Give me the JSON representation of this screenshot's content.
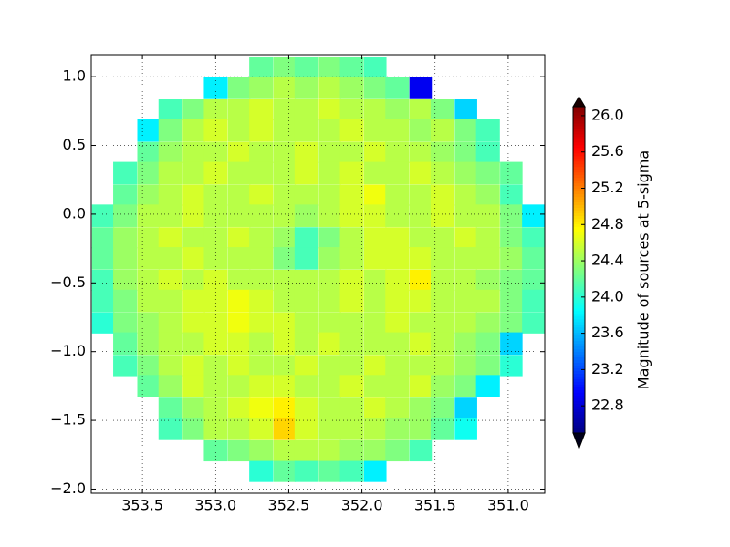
{
  "chart_data": {
    "type": "heatmap",
    "colorbar_label": "Magnitude of sources at 5-sigma",
    "colormap": "jet",
    "clim": [
      22.5,
      26.1
    ],
    "cticks": [
      22.8,
      23.2,
      23.6,
      {
        "value": 24,
        "label": "24.0"
      },
      24.4,
      24.8,
      25.2,
      25.6,
      {
        "value": 26,
        "label": "26.0"
      }
    ],
    "xlim": [
      353.85,
      350.75
    ],
    "ylim": [
      -2.03,
      1.16
    ],
    "xticks": [
      353.5,
      {
        "value": 353,
        "label": "353.0"
      },
      352.5,
      {
        "value": 352,
        "label": "352.0"
      },
      351.5,
      {
        "value": 351,
        "label": "351.0"
      }
    ],
    "yticks": [
      {
        "value": 1,
        "label": "1.0"
      },
      {
        "value": 0.5,
        "label": "0.5"
      },
      {
        "value": 0,
        "label": "0.0"
      },
      {
        "value": -0.5,
        "label": "−0.5"
      },
      {
        "value": -1,
        "label": "−1.0"
      },
      {
        "value": -1.5,
        "label": "−1.5"
      },
      {
        "value": -2,
        "label": "−2.0"
      }
    ],
    "grid": true,
    "x": [
      353.77,
      353.62,
      353.46,
      353.31,
      353.15,
      353.0,
      352.84,
      352.69,
      352.53,
      352.38,
      352.22,
      352.07,
      351.91,
      351.76,
      351.6,
      351.45,
      351.29,
      351.14,
      350.98,
      350.83
    ],
    "y": [
      1.07,
      0.92,
      0.76,
      0.61,
      0.45,
      0.3,
      0.14,
      -0.01,
      -0.17,
      -0.32,
      -0.48,
      -0.63,
      -0.79,
      -0.94,
      -1.1,
      -1.25,
      -1.41,
      -1.56,
      -1.72,
      -1.87
    ],
    "z": [
      [
        null,
        null,
        null,
        null,
        null,
        null,
        null,
        24.2,
        24.3,
        24.2,
        24.3,
        24.2,
        24.1,
        null,
        null,
        null,
        null,
        null,
        null,
        null
      ],
      [
        null,
        null,
        null,
        null,
        null,
        23.8,
        24.3,
        24.4,
        24.5,
        24.4,
        24.5,
        24.4,
        24.3,
        24.2,
        22.9,
        null,
        null,
        null,
        null,
        null
      ],
      [
        null,
        null,
        null,
        24.1,
        24.3,
        24.5,
        24.5,
        24.6,
        24.5,
        24.5,
        24.6,
        24.5,
        24.5,
        24.4,
        24.5,
        24.3,
        23.7,
        null,
        null,
        null
      ],
      [
        null,
        null,
        23.8,
        24.3,
        24.5,
        24.6,
        24.5,
        24.6,
        24.5,
        24.5,
        24.5,
        24.6,
        24.5,
        24.5,
        24.4,
        24.5,
        24.3,
        24.1,
        null,
        null
      ],
      [
        null,
        null,
        24.2,
        24.4,
        24.5,
        24.5,
        24.6,
        24.5,
        24.5,
        24.6,
        24.5,
        24.5,
        24.6,
        24.5,
        24.5,
        24.4,
        24.3,
        24.1,
        null,
        null
      ],
      [
        null,
        24.1,
        24.3,
        24.5,
        24.5,
        24.6,
        24.5,
        24.5,
        24.5,
        24.6,
        24.5,
        24.6,
        24.5,
        24.5,
        24.6,
        24.5,
        24.4,
        24.3,
        24.2,
        null
      ],
      [
        null,
        24.2,
        24.4,
        24.5,
        24.6,
        24.5,
        24.5,
        24.6,
        24.5,
        24.5,
        24.5,
        24.6,
        24.7,
        24.5,
        24.5,
        24.6,
        24.5,
        24.4,
        24.1,
        null
      ],
      [
        24.1,
        24.3,
        24.5,
        24.5,
        24.6,
        24.5,
        24.5,
        24.5,
        24.5,
        24.4,
        24.5,
        24.6,
        24.6,
        24.5,
        24.5,
        24.6,
        24.5,
        24.5,
        24.3,
        23.8
      ],
      [
        24.2,
        24.4,
        24.5,
        24.6,
        24.5,
        24.5,
        24.6,
        24.5,
        24.4,
        24.1,
        24.3,
        24.5,
        24.6,
        24.6,
        24.5,
        24.5,
        24.6,
        24.5,
        24.3,
        24.1
      ],
      [
        24.2,
        24.4,
        24.5,
        24.5,
        24.6,
        24.5,
        24.5,
        24.5,
        24.3,
        24.1,
        24.4,
        24.5,
        24.6,
        24.6,
        24.6,
        24.5,
        24.5,
        24.5,
        24.4,
        24.2
      ],
      [
        24.1,
        24.4,
        24.5,
        24.6,
        24.5,
        24.6,
        24.5,
        24.5,
        24.5,
        24.5,
        24.5,
        24.6,
        24.5,
        24.6,
        24.8,
        24.5,
        24.5,
        24.4,
        24.3,
        24.2
      ],
      [
        24.1,
        24.3,
        24.5,
        24.5,
        24.6,
        24.6,
        24.7,
        24.6,
        24.5,
        24.5,
        24.5,
        24.6,
        24.5,
        24.6,
        24.6,
        24.5,
        24.5,
        24.5,
        24.3,
        24.1
      ],
      [
        24.0,
        24.3,
        24.4,
        24.5,
        24.6,
        24.6,
        24.7,
        24.6,
        24.6,
        24.5,
        24.5,
        24.5,
        24.5,
        24.6,
        24.5,
        24.5,
        24.5,
        24.4,
        24.3,
        24.1
      ],
      [
        null,
        24.2,
        24.4,
        24.5,
        24.5,
        24.6,
        24.6,
        24.5,
        24.6,
        24.5,
        24.6,
        24.5,
        24.5,
        24.5,
        24.6,
        24.5,
        24.4,
        24.3,
        23.7,
        null
      ],
      [
        null,
        24.1,
        24.3,
        24.5,
        24.6,
        24.5,
        24.6,
        24.5,
        24.5,
        24.6,
        24.5,
        24.5,
        24.6,
        24.5,
        24.5,
        24.5,
        24.4,
        24.3,
        24.0,
        null
      ],
      [
        null,
        null,
        24.2,
        24.4,
        24.6,
        24.5,
        24.5,
        24.6,
        24.6,
        24.5,
        24.5,
        24.6,
        24.5,
        24.5,
        24.6,
        24.4,
        24.3,
        23.8,
        null,
        null
      ],
      [
        null,
        null,
        null,
        24.2,
        24.4,
        24.5,
        24.6,
        24.7,
        24.8,
        24.6,
        24.5,
        24.5,
        24.6,
        24.5,
        24.4,
        24.3,
        23.7,
        null,
        null,
        null
      ],
      [
        null,
        null,
        null,
        24.1,
        24.3,
        24.5,
        24.5,
        24.6,
        24.9,
        24.6,
        24.5,
        24.5,
        24.5,
        24.4,
        24.4,
        24.2,
        23.9,
        null,
        null,
        null
      ],
      [
        null,
        null,
        null,
        null,
        null,
        24.2,
        24.3,
        24.4,
        24.5,
        24.5,
        24.5,
        24.4,
        24.4,
        24.3,
        24.1,
        null,
        null,
        null,
        null,
        null
      ],
      [
        null,
        null,
        null,
        null,
        null,
        null,
        null,
        24.0,
        24.2,
        24.1,
        24.2,
        24.1,
        23.8,
        null,
        null,
        null,
        null,
        null,
        null,
        null
      ]
    ]
  }
}
